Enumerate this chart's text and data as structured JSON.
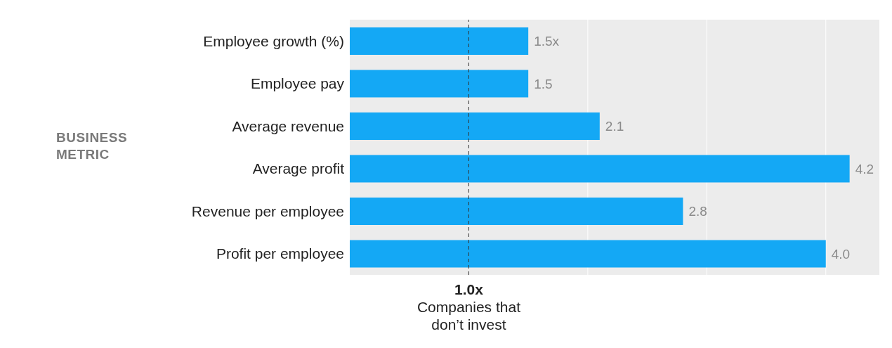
{
  "chart_data": {
    "type": "bar",
    "orientation": "horizontal",
    "ylabel": "BUSINESS METRIC",
    "categories": [
      "Employee growth (%)",
      "Employee pay",
      "Average revenue",
      "Average profit",
      "Revenue per employee",
      "Profit per employee"
    ],
    "values": [
      1.5,
      1.5,
      2.1,
      4.2,
      2.8,
      4.0
    ],
    "value_labels": [
      "1.5x",
      "1.5",
      "2.1",
      "4.2",
      "2.8",
      "4.0"
    ],
    "color": "#14a8f5",
    "xlim": [
      0,
      4.45
    ],
    "xticks": [
      {
        "value": 2,
        "label": null
      },
      {
        "value": 3,
        "label": null
      },
      {
        "value": 4,
        "label": null
      }
    ],
    "tick_labels": "y",
    "grid": "x",
    "ref_lines": [
      {
        "axis": "x",
        "value": 1,
        "label": "1.0x\nCompanies that\ndon’t invest",
        "color": "#333333",
        "line_style": "dashed"
      }
    ]
  }
}
